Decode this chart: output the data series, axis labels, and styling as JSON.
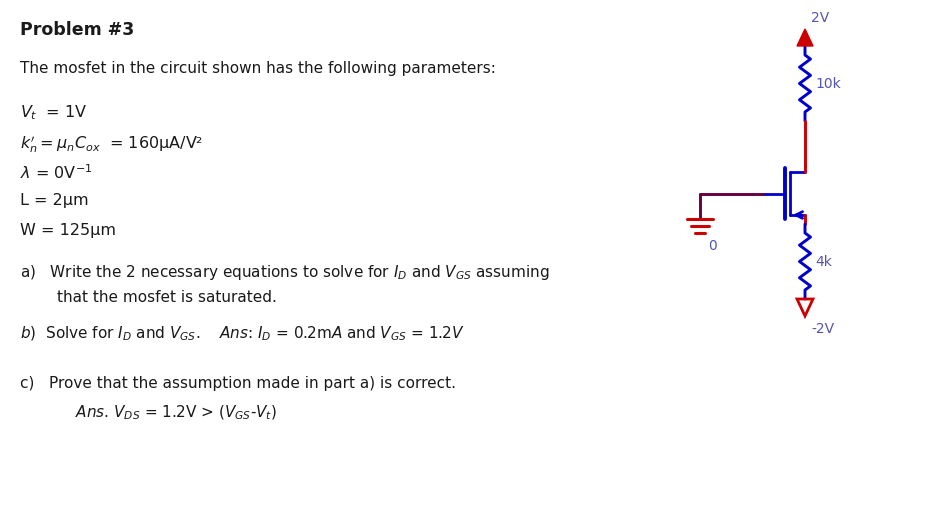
{
  "bg_color": "#ffffff",
  "text_color": "#1a1a1a",
  "label_color": "#5555aa",
  "circuit_color_red": "#cc0000",
  "circuit_color_blue": "#0000cc",
  "circuit_color_purple": "#660044",
  "vdd_label": "2V",
  "vss_label": "-2V",
  "r1_label": "10k",
  "r2_label": "4k",
  "gnd_label": "0",
  "fig_width": 9.49,
  "fig_height": 5.21,
  "dpi": 100
}
